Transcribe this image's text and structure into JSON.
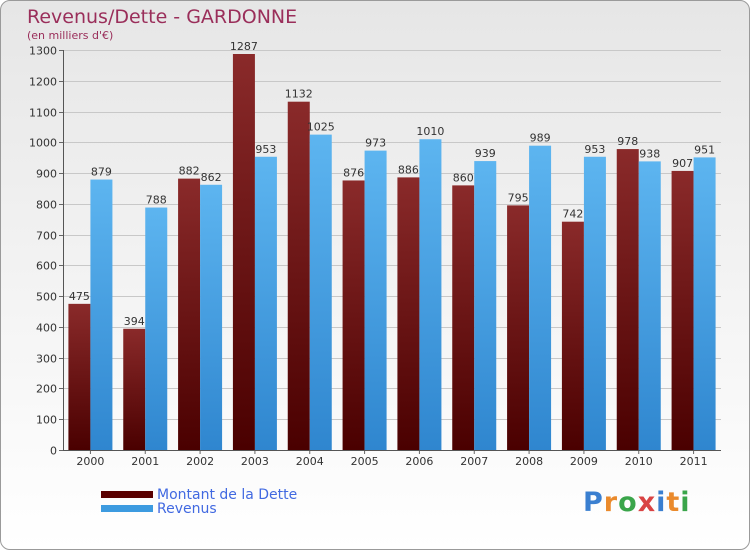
{
  "title": "Revenus/Dette - GARDONNE",
  "subtitle": "(en milliers d'€)",
  "chart_data": {
    "type": "bar",
    "title": "Revenus/Dette - GARDONNE",
    "subtitle": "(en milliers d'€)",
    "xlabel": "",
    "ylabel": "",
    "ylim": [
      0,
      1300
    ],
    "yticks": [
      0,
      100,
      200,
      300,
      400,
      500,
      600,
      700,
      800,
      900,
      1000,
      1100,
      1200,
      1300
    ],
    "grid": true,
    "categories": [
      "2000",
      "2001",
      "2002",
      "2003",
      "2004",
      "2005",
      "2006",
      "2007",
      "2008",
      "2009",
      "2010",
      "2011"
    ],
    "series": [
      {
        "name": "Montant de la Dette",
        "color": "#7a1a1a",
        "values": [
          475,
          394,
          882,
          1287,
          1132,
          876,
          886,
          860,
          795,
          742,
          978,
          907
        ]
      },
      {
        "name": "Revenus",
        "color": "#3d9be0",
        "values": [
          879,
          788,
          862,
          953,
          1025,
          973,
          1010,
          939,
          989,
          953,
          938,
          951
        ]
      }
    ]
  },
  "legend": {
    "items": [
      {
        "label": "Montant de la Dette",
        "color": "#5a0000"
      },
      {
        "label": "Revenus",
        "color": "#3d9be0"
      }
    ]
  },
  "logo": {
    "letters": [
      {
        "ch": "P",
        "color": "#3a7fd0"
      },
      {
        "ch": "r",
        "color": "#ea8a2c"
      },
      {
        "ch": "o",
        "color": "#3aa54a"
      },
      {
        "ch": "x",
        "color": "#d94343"
      },
      {
        "ch": "i",
        "color": "#3a7fd0"
      },
      {
        "ch": "t",
        "color": "#ea8a2c"
      },
      {
        "ch": "i",
        "color": "#3aa54a"
      }
    ]
  }
}
